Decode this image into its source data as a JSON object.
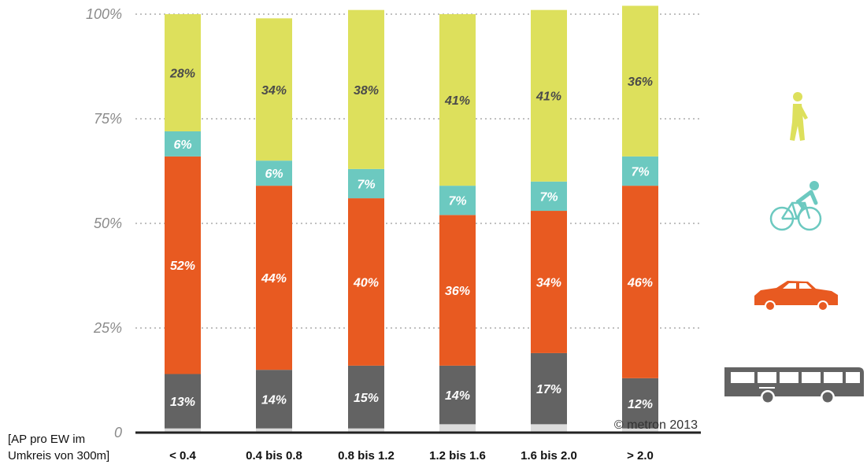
{
  "chart_data": {
    "type": "bar",
    "stacked": true,
    "y_axis": {
      "ylim": [
        0,
        100
      ],
      "ticks": [
        "0",
        "25%",
        "50%",
        "75%",
        "100%"
      ],
      "grid": "dotted"
    },
    "x_axis_note": [
      "[AP pro EW im",
      "Umkreis von 300m]"
    ],
    "categories": [
      "< 0.4",
      "0.4 bis 0.8",
      "0.8 bis 1.2",
      "1.2 bis 1.6",
      "1.6 bis 2.0",
      "> 2.0"
    ],
    "series": [
      {
        "key": "other",
        "values": [
          1,
          1,
          1,
          2,
          2,
          1
        ],
        "color": "#dcdcdc",
        "labels": [
          "",
          "",
          "",
          "",
          "",
          ""
        ]
      },
      {
        "key": "bus",
        "icon": "bus-icon",
        "values": [
          13,
          14,
          15,
          14,
          17,
          12
        ],
        "color": "#636363",
        "labels": [
          "13%",
          "14%",
          "15%",
          "14%",
          "17%",
          "12%"
        ]
      },
      {
        "key": "car",
        "icon": "car-icon",
        "values": [
          52,
          44,
          40,
          36,
          34,
          46
        ],
        "color": "#e85a21",
        "labels": [
          "52%",
          "44%",
          "40%",
          "36%",
          "34%",
          "46%"
        ]
      },
      {
        "key": "bicycle",
        "icon": "bicycle-icon",
        "values": [
          6,
          6,
          7,
          7,
          7,
          7
        ],
        "color": "#6cc9c0",
        "labels": [
          "6%",
          "6%",
          "7%",
          "7%",
          "7%",
          "7%"
        ]
      },
      {
        "key": "walk",
        "icon": "pedestrian-icon",
        "values": [
          28,
          34,
          38,
          41,
          41,
          36
        ],
        "color": "#dde05c",
        "labels": [
          "28%",
          "34%",
          "38%",
          "41%",
          "41%",
          "36%"
        ]
      }
    ],
    "copyright": "© metron 2013"
  }
}
